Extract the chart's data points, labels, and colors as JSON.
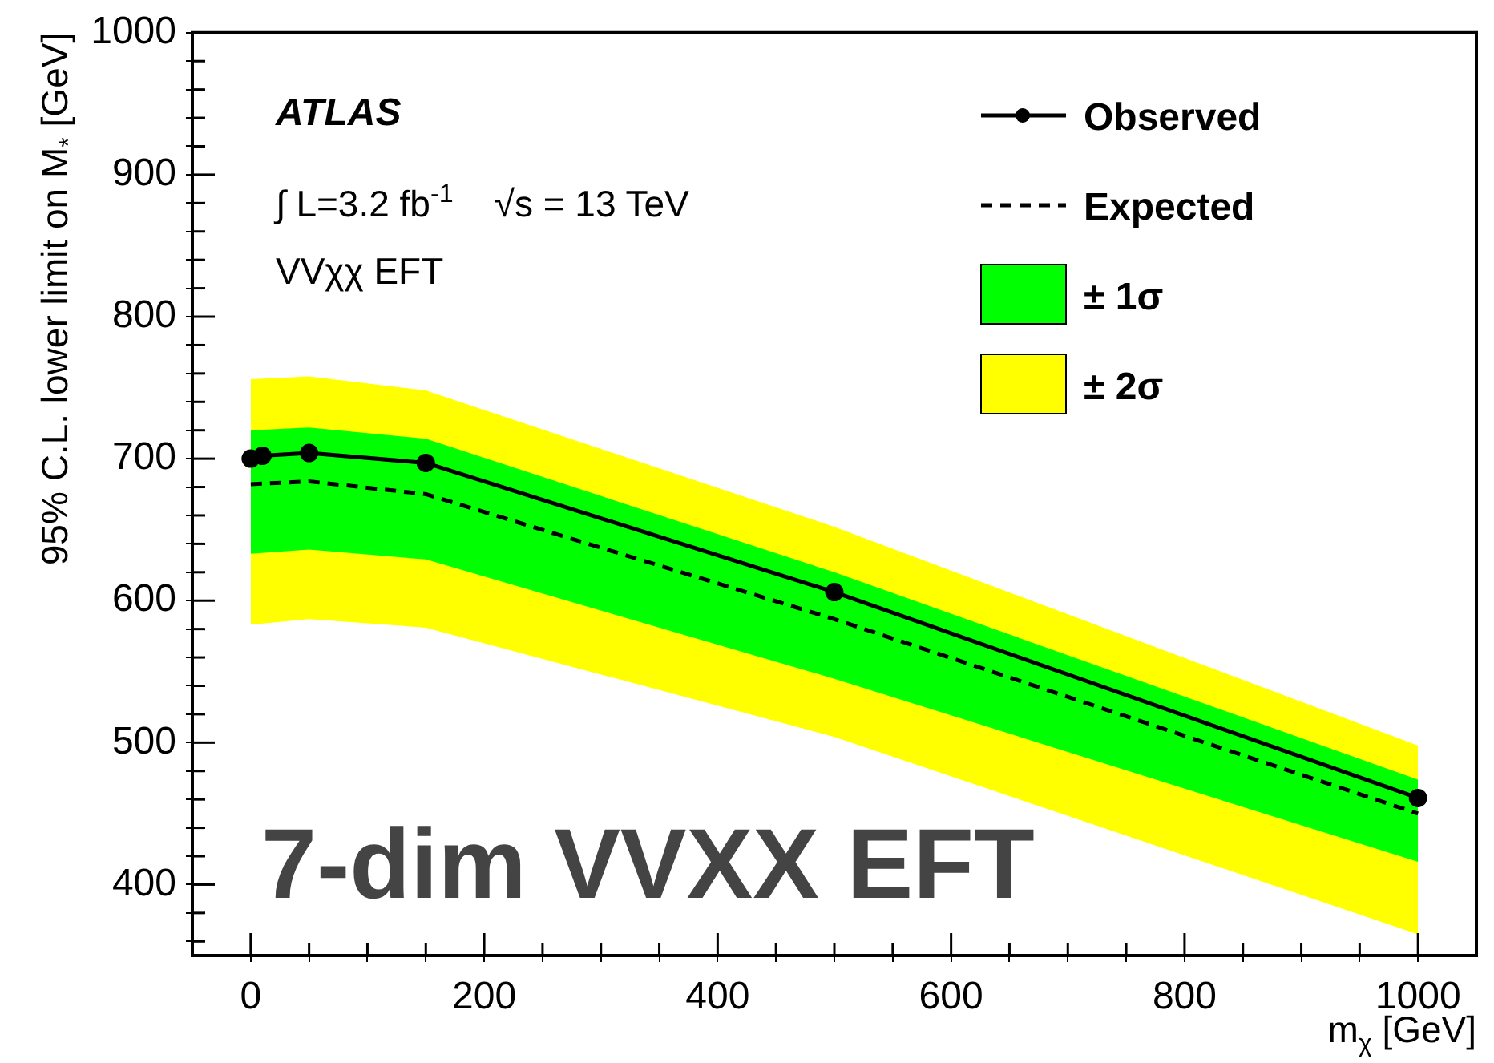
{
  "chart_data": {
    "type": "line",
    "xlabel": "m$_{χ}$ [GeV]",
    "ylabel": "95% C.L. lower limit on M$_{*}$ [GeV]",
    "xlim": [
      -50,
      1050
    ],
    "ylim": [
      350,
      1000
    ],
    "xticks": [
      0,
      {
        "value": 50,
        "label": null
      },
      {
        "value": 100,
        "label": null
      },
      {
        "value": 150,
        "label": null
      },
      200,
      {
        "value": 250,
        "label": null
      },
      {
        "value": 300,
        "label": null
      },
      {
        "value": 350,
        "label": null
      },
      400,
      {
        "value": 450,
        "label": null
      },
      {
        "value": 500,
        "label": null
      },
      {
        "value": 550,
        "label": null
      },
      600,
      {
        "value": 650,
        "label": null
      },
      {
        "value": 700,
        "label": null
      },
      {
        "value": 750,
        "label": null
      },
      800,
      {
        "value": 850,
        "label": null
      },
      {
        "value": 900,
        "label": null
      },
      {
        "value": 950,
        "label": null
      },
      1000
    ],
    "yticks": [
      {
        "value": 360,
        "label": null
      },
      {
        "value": 380,
        "label": null
      },
      400,
      {
        "value": 420,
        "label": null
      },
      {
        "value": 440,
        "label": null
      },
      {
        "value": 460,
        "label": null
      },
      {
        "value": 480,
        "label": null
      },
      500,
      {
        "value": 520,
        "label": null
      },
      {
        "value": 540,
        "label": null
      },
      {
        "value": 560,
        "label": null
      },
      {
        "value": 580,
        "label": null
      },
      600,
      {
        "value": 620,
        "label": null
      },
      {
        "value": 640,
        "label": null
      },
      {
        "value": 660,
        "label": null
      },
      {
        "value": 680,
        "label": null
      },
      700,
      {
        "value": 720,
        "label": null
      },
      {
        "value": 740,
        "label": null
      },
      {
        "value": 760,
        "label": null
      },
      {
        "value": 780,
        "label": null
      },
      800,
      {
        "value": 820,
        "label": null
      },
      {
        "value": 840,
        "label": null
      },
      {
        "value": 860,
        "label": null
      },
      {
        "value": 880,
        "label": null
      },
      900,
      {
        "value": 920,
        "label": null
      },
      {
        "value": 940,
        "label": null
      },
      {
        "value": 960,
        "label": null
      },
      {
        "value": 980,
        "label": null
      },
      1000
    ],
    "legend": "top right",
    "series": [
      {
        "name": "Observed",
        "type": "line",
        "color": "#000000",
        "line_style": "solid",
        "marker": "circle",
        "x": [
          0,
          10,
          50,
          150,
          500,
          1000
        ],
        "values": [
          700,
          702,
          704,
          697,
          606,
          461
        ]
      },
      {
        "name": "Expected",
        "type": "line",
        "color": "#000000",
        "line_style": "dashed",
        "marker": "none",
        "x": [
          0,
          50,
          150,
          500,
          1000
        ],
        "values": [
          682,
          684,
          675,
          587,
          450
        ]
      },
      {
        "name": "± 1σ",
        "type": "area",
        "color": "#00ff00",
        "x": [
          0,
          50,
          150,
          500,
          1000
        ],
        "values": [
          null,
          null,
          null,
          null,
          null
        ],
        "lower": [
          633,
          636,
          629,
          545,
          416
        ],
        "upper": [
          720,
          722,
          714,
          620,
          474
        ]
      },
      {
        "name": "± 2σ",
        "type": "area",
        "color": "#ffff00",
        "x": [
          0,
          50,
          150,
          500,
          1000
        ],
        "values": [
          null,
          null,
          null,
          null,
          null
        ],
        "lower": [
          583,
          587,
          581,
          504,
          365
        ],
        "upper": [
          756,
          758,
          748,
          652,
          498
        ]
      }
    ],
    "annotations": [
      "ATLAS",
      "∫ L=3.2 fb$^{-1}$    √s = 13 TeV",
      "VVχχ EFT",
      "7-dim VVXX EFT"
    ]
  }
}
